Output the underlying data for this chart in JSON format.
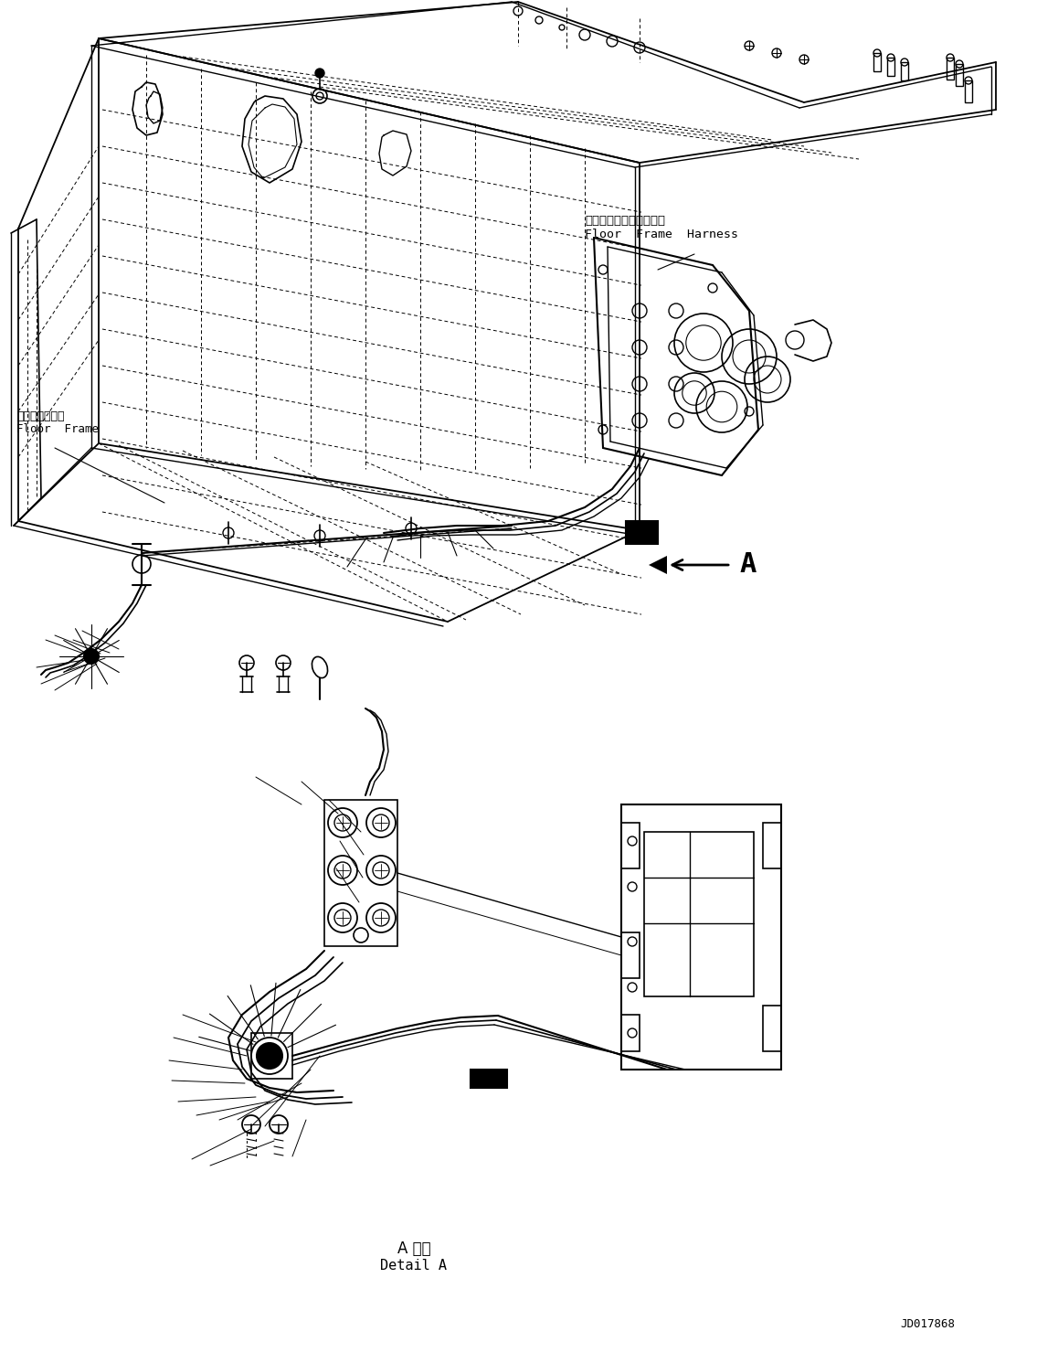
{
  "background_color": "#ffffff",
  "line_color": "#000000",
  "label_floor_frame_jp": "フロアフレーム",
  "label_floor_frame_en": "Floor  Frame",
  "label_harness_jp": "フロアフレームハーネス",
  "label_harness_en": "Floor  Frame  Harness",
  "label_detail_jp": "A 詳細",
  "label_detail_en": "Detail A",
  "label_A": "A",
  "label_doc": "JD017868",
  "fig_width": 11.35,
  "fig_height": 14.91
}
